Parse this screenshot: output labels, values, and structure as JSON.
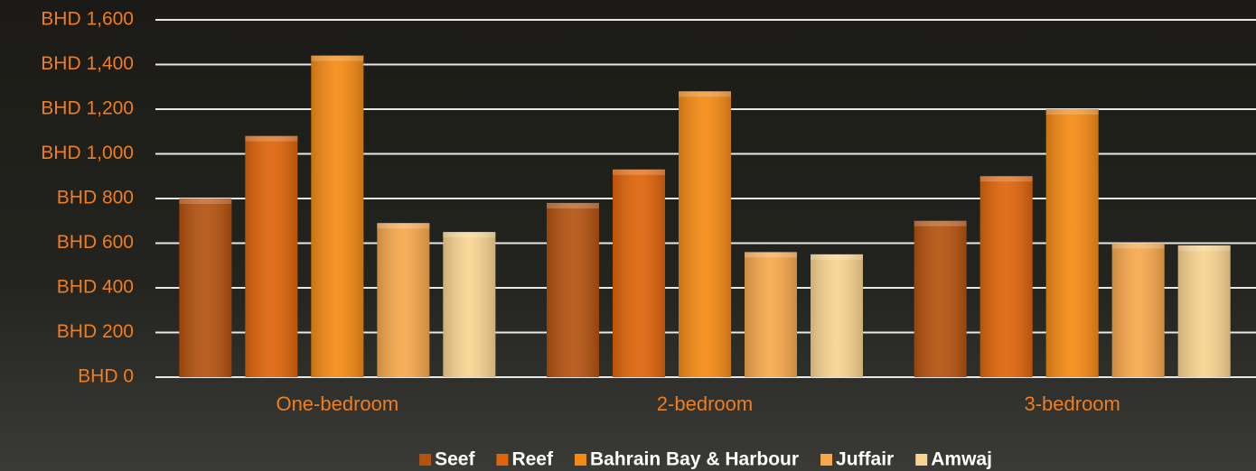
{
  "chart_data": {
    "type": "bar",
    "categories": [
      "One-bedroom",
      "2-bedroom",
      "3-bedroom"
    ],
    "series": [
      {
        "name": "Seef",
        "color": "#b4520f",
        "values": [
          800,
          780,
          700
        ]
      },
      {
        "name": "Reef",
        "color": "#df640a",
        "values": [
          1080,
          930,
          900
        ]
      },
      {
        "name": "Bahrain Bay & Harbour",
        "color": "#f58a14",
        "values": [
          1440,
          1280,
          1200
        ]
      },
      {
        "name": "Juffair",
        "color": "#f7a84c",
        "values": [
          690,
          560,
          600
        ]
      },
      {
        "name": "Amwaj",
        "color": "#f9d490",
        "values": [
          650,
          550,
          590
        ]
      }
    ],
    "ylim": [
      0,
      1600
    ],
    "yticks": [
      {
        "value": 0,
        "label": "BHD 0"
      },
      {
        "value": 200,
        "label": "BHD 200"
      },
      {
        "value": 400,
        "label": "BHD 400"
      },
      {
        "value": 600,
        "label": "BHD 600"
      },
      {
        "value": 800,
        "label": "BHD 800"
      },
      {
        "value": 1000,
        "label": "BHD 1,000"
      },
      {
        "value": 1200,
        "label": "BHD 1,200"
      },
      {
        "value": 1400,
        "label": "BHD 1,400"
      },
      {
        "value": 1600,
        "label": "BHD 1,600"
      }
    ],
    "grid": true,
    "legend": "bottom"
  }
}
